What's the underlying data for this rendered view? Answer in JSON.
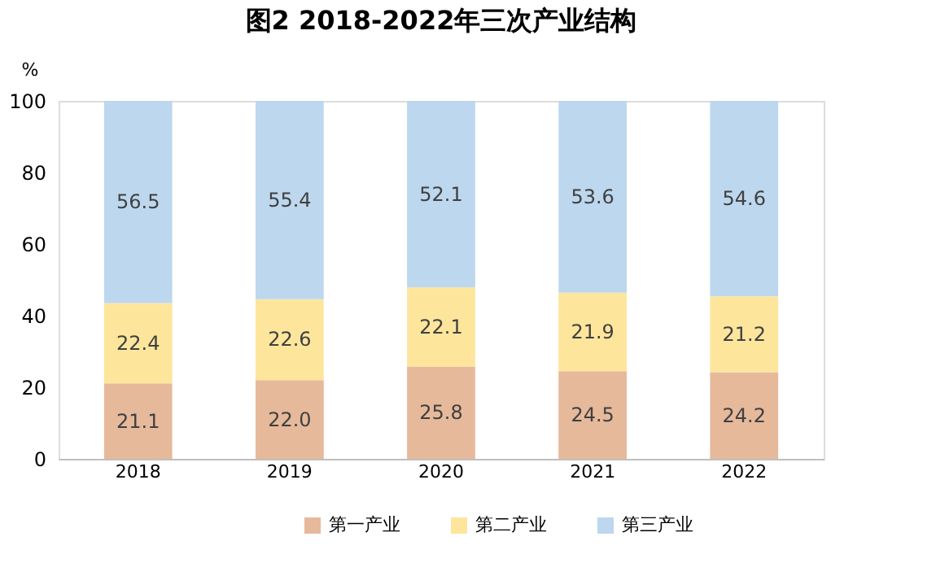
{
  "chart_data": {
    "type": "bar",
    "title": "图2 2018-2022年三次产业结构",
    "ylabel": "%",
    "stacked": true,
    "legend": "bottom",
    "grid": false,
    "categories": [
      "2018",
      "2019",
      "2020",
      "2021",
      "2022"
    ],
    "ylim": [
      0,
      100
    ],
    "yticks": [
      0,
      20,
      40,
      60,
      80,
      100
    ],
    "series": [
      {
        "name": "第一产业",
        "color": "#e6b99b",
        "values": [
          21.1,
          22.0,
          25.8,
          24.5,
          24.2
        ],
        "value_labels": [
          "21.1",
          "22.0",
          "25.8",
          "24.5",
          "24.2"
        ]
      },
      {
        "name": "第二产业",
        "color": "#fde69c",
        "values": [
          22.4,
          22.6,
          22.1,
          21.9,
          21.2
        ],
        "value_labels": [
          "22.4",
          "22.6",
          "22.1",
          "21.9",
          "21.2"
        ]
      },
      {
        "name": "第三产业",
        "color": "#bdd7ee",
        "values": [
          56.5,
          55.4,
          52.1,
          53.6,
          54.6
        ],
        "value_labels": [
          "56.5",
          "55.4",
          "52.1",
          "53.6",
          "54.6"
        ]
      }
    ]
  }
}
